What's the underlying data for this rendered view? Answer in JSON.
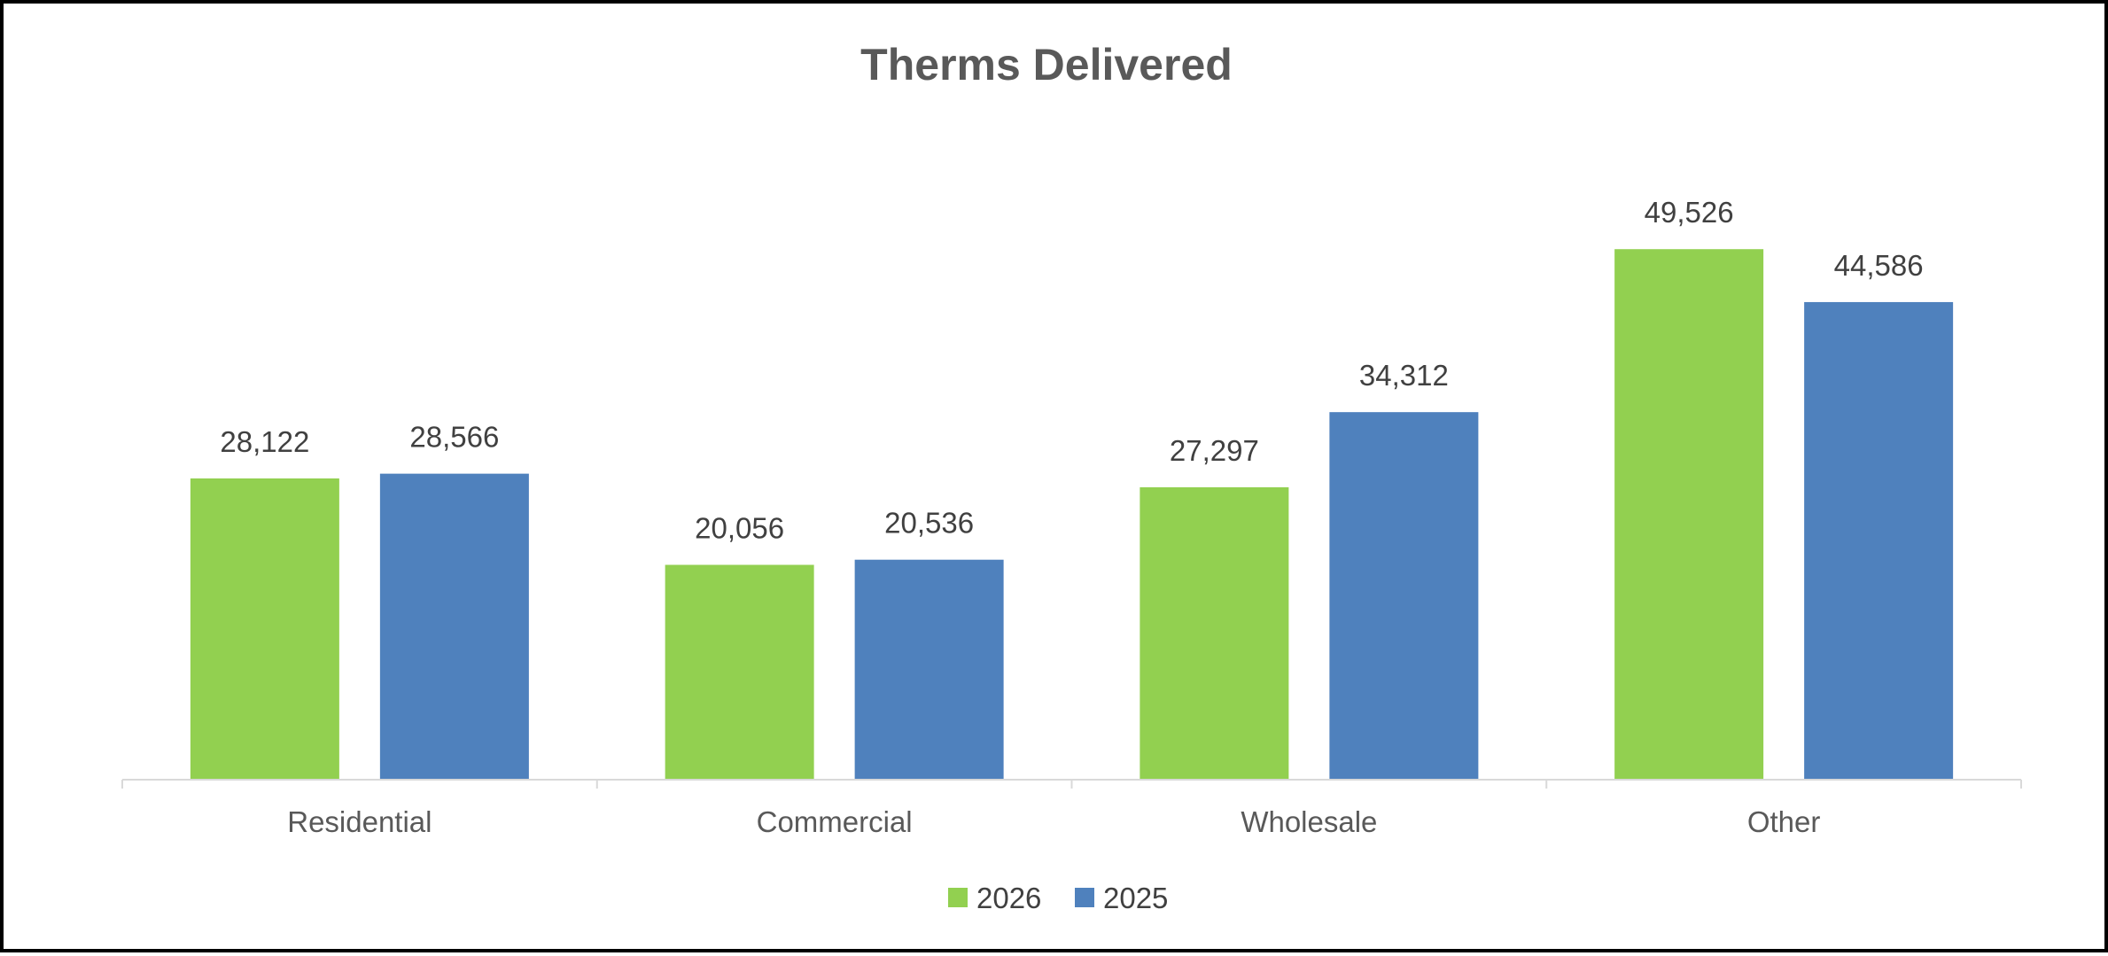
{
  "chart_data": {
    "type": "bar",
    "title": "Therms Delivered",
    "xlabel": "",
    "ylabel": "",
    "categories": [
      "Residential",
      "Commercial",
      "Wholesale",
      "Other"
    ],
    "series": [
      {
        "name": "2026",
        "values": [
          28122,
          20056,
          27297,
          49526
        ],
        "color": "#92D050"
      },
      {
        "name": "2025",
        "values": [
          28566,
          20536,
          34312,
          44586
        ],
        "color": "#4F81BD"
      }
    ],
    "data_labels": [
      [
        "28,122",
        "20,056",
        "27,297",
        "49,526"
      ],
      [
        "28,566",
        "20,536",
        "34,312",
        "44,586"
      ]
    ],
    "ylim": [
      0,
      60000
    ],
    "grid": false,
    "legend": "bottom",
    "axis_color": "#D9D9D9"
  }
}
